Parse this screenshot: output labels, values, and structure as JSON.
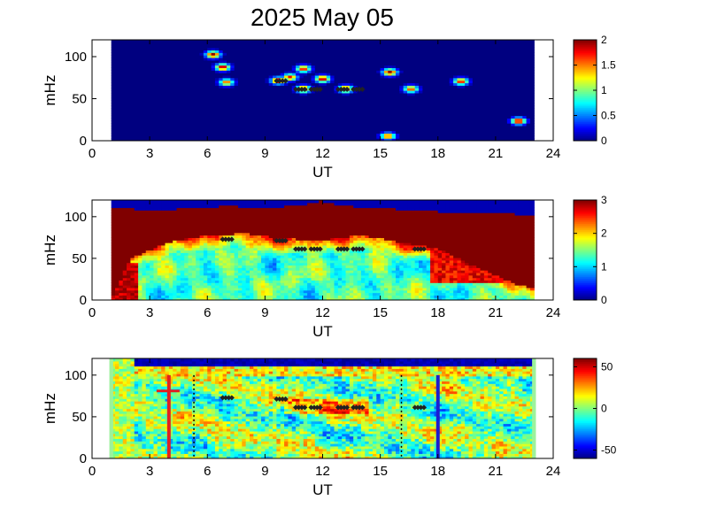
{
  "title": "2025 May 05",
  "chart_data": [
    {
      "type": "heatmap",
      "xlabel": "UT",
      "ylabel": "mHz",
      "xlim": [
        0,
        24
      ],
      "ylim": [
        0,
        120
      ],
      "x_ticks": [
        "0",
        "3",
        "6",
        "9",
        "12",
        "15",
        "18",
        "21",
        "24"
      ],
      "y_ticks": [
        "0",
        "50",
        "100"
      ],
      "data_x_range": [
        1,
        23
      ],
      "colorbar": {
        "range": [
          0,
          2
        ],
        "ticks": [
          "0",
          "0.5",
          "1",
          "1.5",
          "2"
        ]
      },
      "background_level": 0,
      "blobs": [
        {
          "x": 6.3,
          "y": 103,
          "level": 2
        },
        {
          "x": 6.8,
          "y": 88,
          "level": 2
        },
        {
          "x": 9.7,
          "y": 72,
          "level": 2
        },
        {
          "x": 10.3,
          "y": 76,
          "level": 1.8
        },
        {
          "x": 11.0,
          "y": 86,
          "level": 1.8
        },
        {
          "x": 11.0,
          "y": 62,
          "level": 2
        },
        {
          "x": 12.0,
          "y": 74,
          "level": 2
        },
        {
          "x": 13.2,
          "y": 62,
          "level": 2
        },
        {
          "x": 15.5,
          "y": 82,
          "level": 2
        },
        {
          "x": 16.6,
          "y": 62,
          "level": 1.7
        },
        {
          "x": 19.2,
          "y": 71,
          "level": 1.8
        },
        {
          "x": 22.2,
          "y": 24,
          "level": 2
        },
        {
          "x": 15.4,
          "y": 6,
          "level": 1.7
        },
        {
          "x": 7.0,
          "y": 70,
          "level": 1.6
        }
      ],
      "markers": [
        {
          "x": 9.6,
          "y": 72
        },
        {
          "x": 10.6,
          "y": 62
        },
        {
          "x": 11.4,
          "y": 62
        },
        {
          "x": 12.8,
          "y": 62
        },
        {
          "x": 13.6,
          "y": 62
        }
      ]
    },
    {
      "type": "heatmap",
      "xlabel": "UT",
      "ylabel": "mHz",
      "xlim": [
        0,
        24
      ],
      "ylim": [
        0,
        120
      ],
      "x_ticks": [
        "0",
        "3",
        "6",
        "9",
        "12",
        "15",
        "18",
        "21",
        "24"
      ],
      "y_ticks": [
        "0",
        "50",
        "100"
      ],
      "data_x_range": [
        1,
        23
      ],
      "colorbar": {
        "range": [
          0,
          3
        ],
        "ticks": [
          "0",
          "1",
          "2",
          "3"
        ]
      },
      "upper_saturated_boundary": [
        {
          "x": 1,
          "y": 112
        },
        {
          "x": 3,
          "y": 108
        },
        {
          "x": 5,
          "y": 110
        },
        {
          "x": 7,
          "y": 113
        },
        {
          "x": 9,
          "y": 111
        },
        {
          "x": 11,
          "y": 114
        },
        {
          "x": 12,
          "y": 119
        },
        {
          "x": 13,
          "y": 113
        },
        {
          "x": 15,
          "y": 111
        },
        {
          "x": 17,
          "y": 107
        },
        {
          "x": 19,
          "y": 106
        },
        {
          "x": 21,
          "y": 104
        },
        {
          "x": 23,
          "y": 103
        }
      ],
      "saturated_lower_envelope": [
        {
          "x": 1,
          "y": 0
        },
        {
          "x": 2,
          "y": 50
        },
        {
          "x": 4,
          "y": 70
        },
        {
          "x": 6,
          "y": 78
        },
        {
          "x": 8,
          "y": 80
        },
        {
          "x": 10,
          "y": 74
        },
        {
          "x": 12,
          "y": 72
        },
        {
          "x": 14,
          "y": 78
        },
        {
          "x": 16,
          "y": 70
        },
        {
          "x": 18,
          "y": 62
        },
        {
          "x": 20,
          "y": 40
        },
        {
          "x": 22,
          "y": 20
        },
        {
          "x": 23,
          "y": 15
        }
      ],
      "markers": [
        {
          "x": 6.8,
          "y": 74
        },
        {
          "x": 9.6,
          "y": 72
        },
        {
          "x": 10.6,
          "y": 62
        },
        {
          "x": 11.4,
          "y": 62
        },
        {
          "x": 12.8,
          "y": 62
        },
        {
          "x": 13.6,
          "y": 62
        },
        {
          "x": 16.8,
          "y": 62
        }
      ]
    },
    {
      "type": "heatmap",
      "xlabel": "UT",
      "ylabel": "mHz",
      "xlim": [
        0,
        24
      ],
      "ylim": [
        0,
        120
      ],
      "x_ticks": [
        "0",
        "3",
        "6",
        "9",
        "12",
        "15",
        "18",
        "21",
        "24"
      ],
      "y_ticks": [
        "0",
        "50",
        "100"
      ],
      "data_x_range": [
        1,
        23
      ],
      "colorbar": {
        "range": [
          -60,
          60
        ],
        "ticks": [
          "50",
          "0",
          "-50"
        ]
      },
      "vertical_lines": [
        {
          "x": 4.0,
          "y_top": 100,
          "color": "#e02020",
          "style": "solid"
        },
        {
          "x": 5.3,
          "y_top": 100,
          "color": "#000000",
          "style": "dotted"
        },
        {
          "x": 16.1,
          "y_top": 100,
          "color": "#000000",
          "style": "dotted"
        },
        {
          "x": 18.0,
          "y_top": 100,
          "color": "#1c1cd0",
          "style": "solid"
        }
      ],
      "markers": [
        {
          "x": 6.8,
          "y": 74
        },
        {
          "x": 9.6,
          "y": 72
        },
        {
          "x": 10.6,
          "y": 62
        },
        {
          "x": 11.4,
          "y": 62
        },
        {
          "x": 12.8,
          "y": 62
        },
        {
          "x": 13.6,
          "y": 62
        },
        {
          "x": 16.8,
          "y": 62
        }
      ]
    }
  ]
}
